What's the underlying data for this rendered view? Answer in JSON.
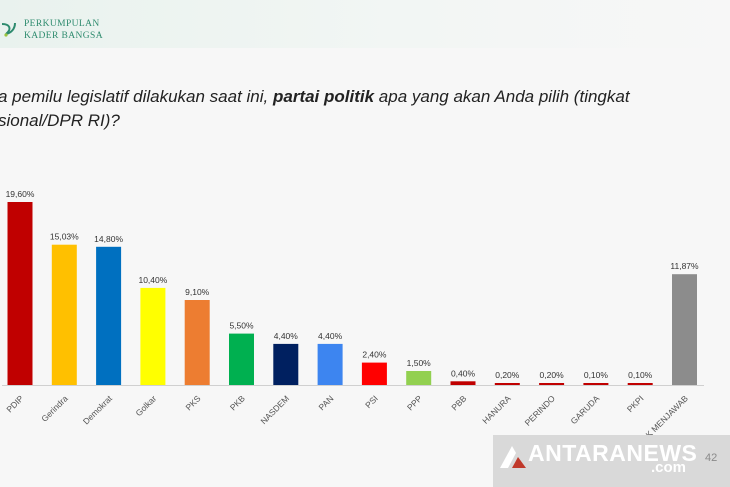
{
  "header": {
    "brand_line1": "PERKUMPULAN",
    "brand_line2": "KADER BANGSA"
  },
  "question": {
    "part1": "a pemilu legislatif dilakukan saat ini, ",
    "bold": "partai politik",
    "part2": " apa yang akan Anda pilih (tingkat",
    "line2": "sional/DPR RI)?"
  },
  "chart_data": {
    "type": "bar",
    "categories": [
      "PDIP",
      "Gerindra",
      "Demokrat",
      "Golkar",
      "PKS",
      "PKB",
      "NASDEM",
      "PAN",
      "PSI",
      "PPP",
      "PBB",
      "HANURA",
      "PERINDO",
      "GARUDA",
      "PKPI",
      "TIDAK MENJAWAB"
    ],
    "category_labels_shown": [
      "PDIP",
      "Gerindra",
      "Demokrat",
      "Golkar",
      "PKS",
      "PKB",
      "NASDEM",
      "PAN",
      "PSI",
      "PPP",
      "PBB",
      "HANURA",
      "PERINDO",
      "GARUDA",
      "PKPI",
      "IDAK MENJAWAB"
    ],
    "values": [
      19.6,
      15.03,
      14.8,
      10.4,
      9.1,
      5.5,
      4.4,
      4.4,
      2.4,
      1.5,
      0.4,
      0.2,
      0.2,
      0.1,
      0.1,
      11.87
    ],
    "value_labels": [
      "19,60%",
      "15,03%",
      "14,80%",
      "10,40%",
      "9,10%",
      "5,50%",
      "4,40%",
      "4,40%",
      "2,40%",
      "1,50%",
      "0,40%",
      "0,20%",
      "0,20%",
      "0,10%",
      "0,10%",
      "11,87%"
    ],
    "colors": [
      "#c00000",
      "#ffc000",
      "#0070c0",
      "#ffff00",
      "#ed7d31",
      "#00b050",
      "#002060",
      "#3d85f0",
      "#ff0000",
      "#92d050",
      "#c00000",
      "#c00000",
      "#c00000",
      "#c00000",
      "#c00000",
      "#8c8c8c"
    ],
    "title": "",
    "xlabel": "",
    "ylabel": "",
    "ylim": [
      0,
      20
    ],
    "grid": false,
    "legend": "none"
  },
  "watermark": {
    "text": "ANTARANEWS",
    "suffix": ".com"
  },
  "page_number": "42"
}
